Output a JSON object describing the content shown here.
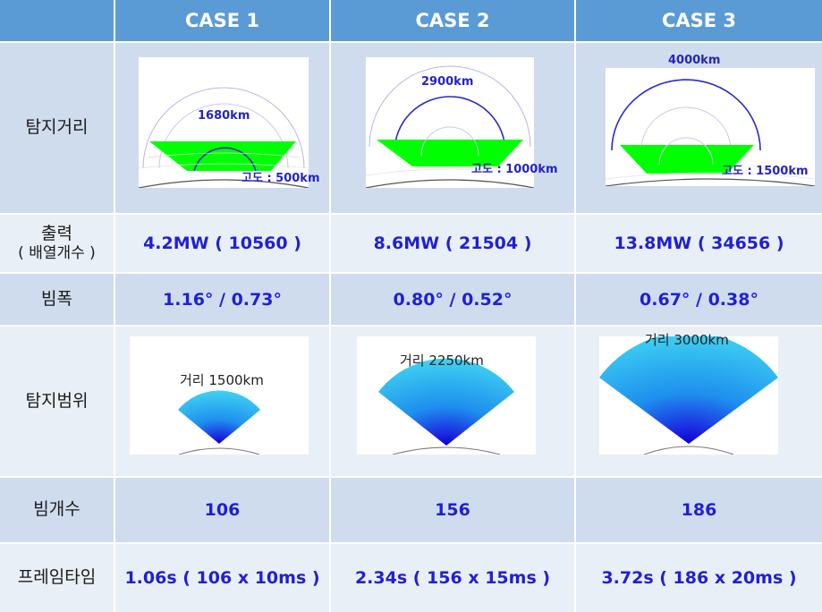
{
  "header": {
    "cases": [
      "CASE 1",
      "CASE 2",
      "CASE 3"
    ]
  },
  "rows": {
    "detection_distance": {
      "label": "탐지거리",
      "cases": [
        {
          "range": "1680km",
          "altitude": "고도 : 500km"
        },
        {
          "range": "2900km",
          "altitude": "고도 : 1000km"
        },
        {
          "range": "4000km",
          "altitude": "고도 : 1500km"
        }
      ]
    },
    "power": {
      "label_line1": "출력",
      "label_line2": "( 배열개수 )",
      "values": [
        "4.2MW ( 10560 )",
        "8.6MW ( 21504 )",
        "13.8MW ( 34656 )"
      ]
    },
    "beamwidth": {
      "label": "빔폭",
      "values": [
        "1.16° / 0.73°",
        "0.80° / 0.52°",
        "0.67° / 0.38°"
      ]
    },
    "coverage": {
      "label": "탐지범위",
      "distances": [
        "거리 1500km",
        "거리 2250km",
        "거리 3000km"
      ]
    },
    "beam_count": {
      "label": "빔개수",
      "values": [
        "106",
        "156",
        "186"
      ]
    },
    "frame_time": {
      "label": "프레임타임",
      "values": [
        "1.06s  ( 106 x 10ms )",
        "2.34s ( 156 x 15ms )",
        "3.72s ( 186 x 20ms )"
      ]
    }
  },
  "colors": {
    "header_bg": "#5b9bd5",
    "row_shade_a": "#cfdced",
    "row_shade_b": "#e9eff7",
    "value_text": "#1f1fd8",
    "coverage_fill": "#00ff00",
    "fan_outer": "#3fd2f2",
    "fan_core": "#0a00c8"
  }
}
